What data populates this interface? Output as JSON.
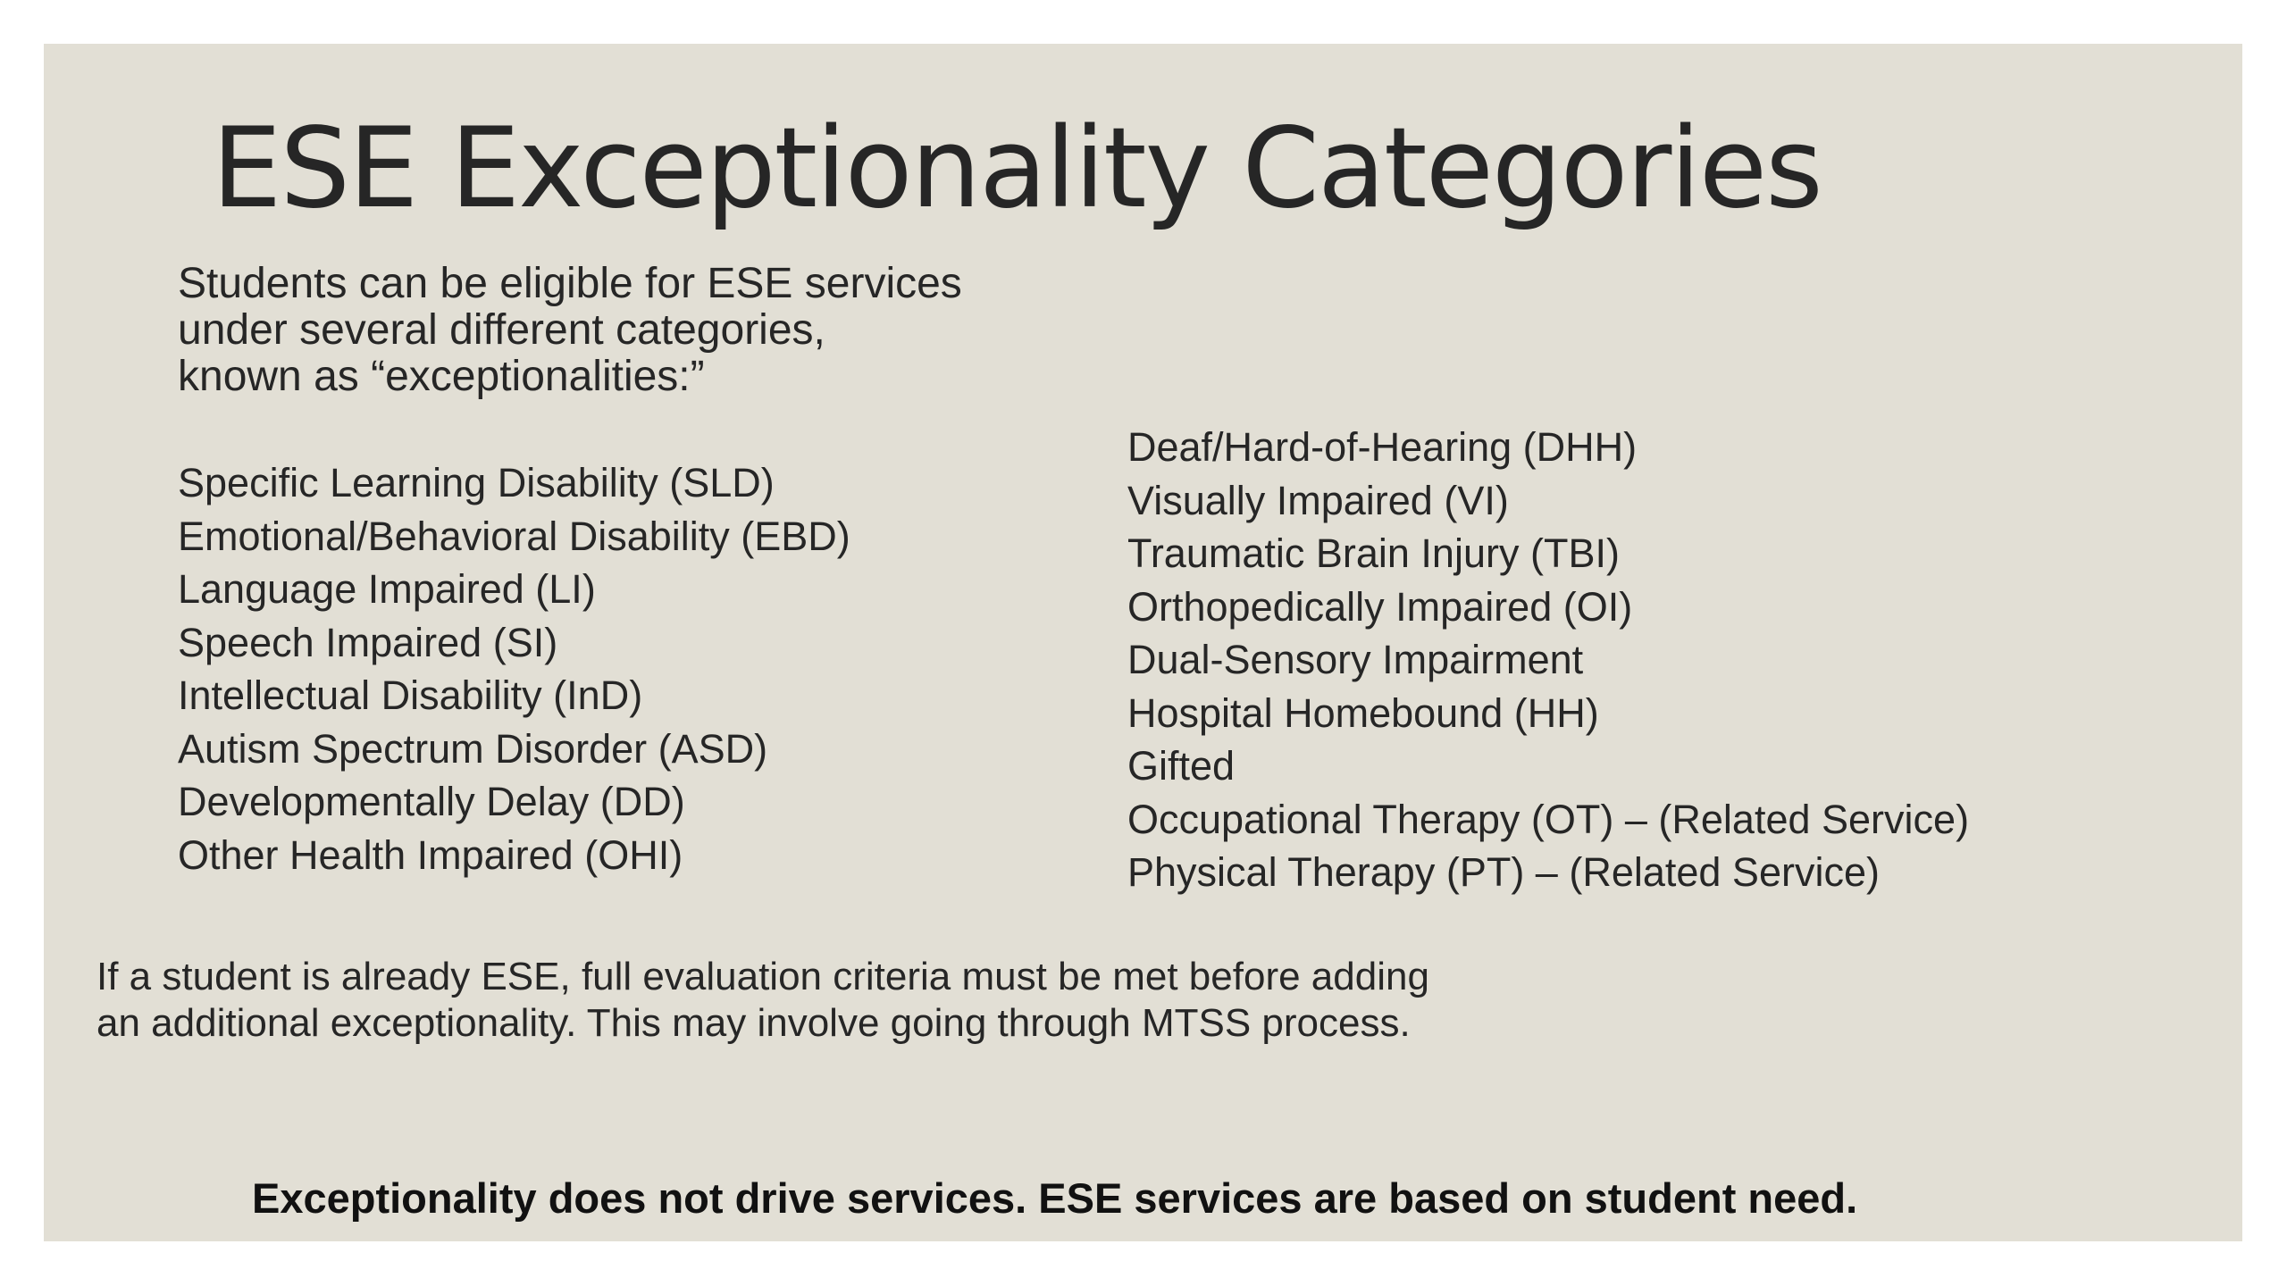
{
  "title": "ESE Exceptionality Categories",
  "intro": [
    "Students can be eligible for ESE services",
    "under several different categories,",
    "known as “exceptionalities:”"
  ],
  "left_list": [
    "Specific Learning Disability (SLD)",
    "Emotional/Behavioral Disability (EBD)",
    "Language Impaired (LI)",
    "Speech Impaired (SI)",
    "Intellectual Disability (InD)",
    "Autism Spectrum Disorder (ASD)",
    "Developmentally Delay (DD)",
    "Other Health Impaired (OHI)"
  ],
  "right_list": [
    "Deaf/Hard-of-Hearing (DHH)",
    "Visually Impaired (VI)",
    "Traumatic Brain Injury (TBI)",
    "Orthopedically Impaired (OI)",
    "Dual-Sensory Impairment",
    "Hospital Homebound (HH)",
    "Gifted",
    "Occupational Therapy (OT) – (Related Service)",
    "Physical Therapy (PT) – (Related Service)"
  ],
  "note": [
    "If a student is already ESE, full evaluation criteria must be met before adding",
    "an additional exceptionality. This may involve going through MTSS process."
  ],
  "emphasis": "Exceptionality does not drive services.  ESE services are based on student need."
}
